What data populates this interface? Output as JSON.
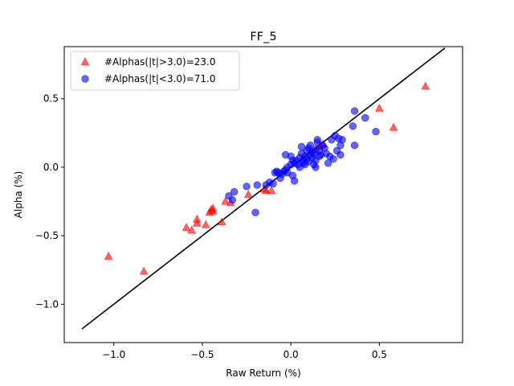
{
  "chart_data": {
    "type": "scatter",
    "title": "FF_5",
    "xlabel": "Raw Return (%)",
    "ylabel": "Alpha (%)",
    "xlim": [
      -1.28,
      0.97
    ],
    "ylim": [
      -1.28,
      0.88
    ],
    "xticks": [
      -1.0,
      -0.5,
      0.0,
      0.5
    ],
    "xtick_labels": [
      "−1.0",
      "−0.5",
      "0.0",
      "0.5"
    ],
    "yticks": [
      -1.0,
      -0.5,
      0.0,
      0.5
    ],
    "ytick_labels": [
      "−1.0",
      "−0.5",
      "0.0",
      "0.5"
    ],
    "grid": false,
    "legend_position": "top-left",
    "reference_line": {
      "x": [
        -1.18,
        0.87
      ],
      "y": [
        -1.18,
        0.87
      ],
      "color": "#000000"
    },
    "series": [
      {
        "name": "#Alphas(|t|>3.0)=23.0",
        "marker": "triangle",
        "color": "#ff0000",
        "points": [
          [
            -1.03,
            -0.65
          ],
          [
            -0.83,
            -0.76
          ],
          [
            -0.59,
            -0.44
          ],
          [
            -0.56,
            -0.46
          ],
          [
            -0.53,
            -0.38
          ],
          [
            -0.53,
            -0.41
          ],
          [
            -0.48,
            -0.42
          ],
          [
            -0.46,
            -0.33
          ],
          [
            -0.45,
            -0.31
          ],
          [
            -0.44,
            -0.3
          ],
          [
            -0.44,
            -0.32
          ],
          [
            -0.39,
            -0.4
          ],
          [
            -0.37,
            -0.25
          ],
          [
            -0.34,
            -0.26
          ],
          [
            -0.24,
            -0.2
          ],
          [
            -0.15,
            -0.16
          ],
          [
            -0.14,
            -0.17
          ],
          [
            -0.11,
            -0.17
          ],
          [
            0.16,
            0.15
          ],
          [
            0.18,
            0.17
          ],
          [
            0.5,
            0.43
          ],
          [
            0.58,
            0.29
          ],
          [
            0.76,
            0.59
          ]
        ]
      },
      {
        "name": "#Alphas(|t|<3.0)=71.0",
        "marker": "circle",
        "color": "#0000ff",
        "points": [
          [
            -0.35,
            -0.21
          ],
          [
            -0.33,
            -0.24
          ],
          [
            -0.32,
            -0.18
          ],
          [
            -0.25,
            -0.14
          ],
          [
            -0.2,
            -0.33
          ],
          [
            -0.19,
            -0.13
          ],
          [
            -0.14,
            -0.13
          ],
          [
            -0.12,
            -0.11
          ],
          [
            -0.1,
            -0.12
          ],
          [
            -0.09,
            -0.04
          ],
          [
            -0.08,
            -0.03
          ],
          [
            -0.07,
            -0.04
          ],
          [
            -0.06,
            -0.08
          ],
          [
            -0.05,
            -0.05
          ],
          [
            -0.04,
            -0.03
          ],
          [
            -0.03,
            -0.02
          ],
          [
            -0.02,
            0.0
          ],
          [
            -0.03,
            0.09
          ],
          [
            -0.02,
            -0.04
          ],
          [
            0.0,
            0.02
          ],
          [
            0.0,
            0.08
          ],
          [
            0.01,
            0.05
          ],
          [
            0.01,
            -0.06
          ],
          [
            0.02,
            -0.1
          ],
          [
            0.02,
            0.03
          ],
          [
            0.03,
            0.05
          ],
          [
            0.04,
            0.02
          ],
          [
            0.05,
            0.07
          ],
          [
            0.05,
            0.0
          ],
          [
            0.06,
            0.1
          ],
          [
            0.06,
            0.15
          ],
          [
            0.07,
            0.03
          ],
          [
            0.07,
            0.05
          ],
          [
            0.08,
            0.02
          ],
          [
            0.08,
            0.08
          ],
          [
            0.09,
            0.06
          ],
          [
            0.09,
            0.12
          ],
          [
            0.1,
            0.14
          ],
          [
            0.1,
            0.04
          ],
          [
            0.11,
            0.09
          ],
          [
            0.11,
            0.16
          ],
          [
            0.12,
            0.07
          ],
          [
            0.12,
            0.11
          ],
          [
            0.13,
            0.02
          ],
          [
            0.13,
            0.1
          ],
          [
            0.14,
            0.05
          ],
          [
            0.14,
            0.13
          ],
          [
            0.14,
            0.0
          ],
          [
            0.15,
            0.18
          ],
          [
            0.15,
            0.2
          ],
          [
            0.16,
            0.08
          ],
          [
            0.16,
            0.12
          ],
          [
            0.17,
            0.09
          ],
          [
            0.18,
            0.16
          ],
          [
            0.19,
            0.14
          ],
          [
            0.2,
            0.1
          ],
          [
            0.21,
            0.03
          ],
          [
            0.22,
            0.08
          ],
          [
            0.23,
            0.2
          ],
          [
            0.24,
            0.06
          ],
          [
            0.25,
            0.23
          ],
          [
            0.26,
            0.12
          ],
          [
            0.27,
            0.21
          ],
          [
            0.28,
            0.09
          ],
          [
            0.28,
            0.16
          ],
          [
            0.29,
            0.2
          ],
          [
            0.35,
            0.3
          ],
          [
            0.36,
            0.41
          ],
          [
            0.36,
            0.16
          ],
          [
            0.42,
            0.36
          ],
          [
            0.48,
            0.26
          ]
        ]
      }
    ]
  }
}
